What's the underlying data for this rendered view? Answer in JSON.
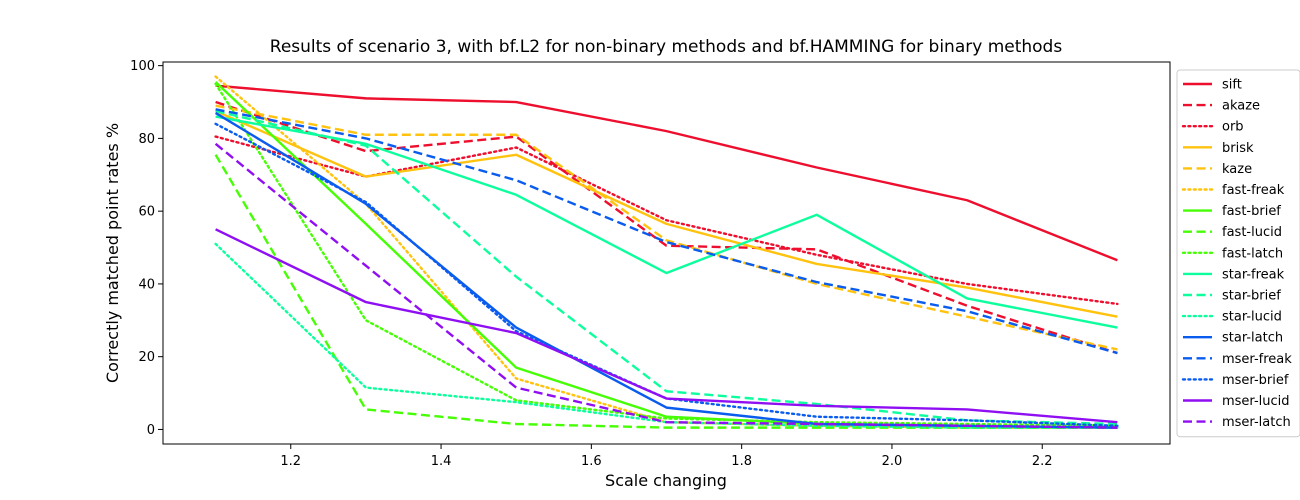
{
  "chart_data": {
    "type": "line",
    "title": "Results of scenario 3, with bf.L2 for non-binary methods and bf.HAMMING for binary methods",
    "xlabel": "Scale changing",
    "ylabel": "Correctly matched point rates %",
    "x": [
      1.1,
      1.3,
      1.5,
      1.7,
      1.9,
      2.1,
      2.3
    ],
    "xlim": [
      1.03,
      2.37
    ],
    "ylim": [
      -4,
      101
    ],
    "xticks": [
      "1.2",
      "1.4",
      "1.6",
      "1.8",
      "2.0",
      "2.2"
    ],
    "yticks": [
      "0",
      "20",
      "40",
      "60",
      "80",
      "100"
    ],
    "grid": false,
    "legend_position": "right-outside",
    "series": [
      {
        "name": "sift",
        "color": "#ee0e2e",
        "dash": "solid",
        "values": [
          94.5,
          91.0,
          90.0,
          82.0,
          72.0,
          63.0,
          46.5
        ]
      },
      {
        "name": "akaze",
        "color": "#ee0e2e",
        "dash": "dashed",
        "values": [
          90.0,
          76.5,
          80.5,
          50.5,
          49.5,
          34.0,
          21.0
        ]
      },
      {
        "name": "orb",
        "color": "#ee0e2e",
        "dash": "dotted",
        "values": [
          80.5,
          69.5,
          77.5,
          57.5,
          48.0,
          40.0,
          34.5
        ]
      },
      {
        "name": "brisk",
        "color": "#ffc30f",
        "dash": "solid",
        "values": [
          87.5,
          69.5,
          75.5,
          56.5,
          45.5,
          39.0,
          31.0
        ]
      },
      {
        "name": "kaze",
        "color": "#ffc30f",
        "dash": "dashed",
        "values": [
          89.0,
          81.0,
          81.0,
          52.0,
          40.0,
          31.0,
          22.0
        ]
      },
      {
        "name": "fast-freak",
        "color": "#ffc30f",
        "dash": "dotted",
        "values": [
          97.0,
          62.0,
          14.0,
          2.0,
          1.0,
          0.5,
          0.5
        ]
      },
      {
        "name": "fast-brief",
        "color": "#46ff05",
        "dash": "solid",
        "values": [
          95.5,
          56.5,
          17.0,
          3.5,
          1.5,
          1.0,
          0.5
        ]
      },
      {
        "name": "fast-lucid",
        "color": "#46ff05",
        "dash": "dashed",
        "values": [
          75.5,
          5.5,
          1.5,
          0.5,
          0.5,
          0.5,
          0.5
        ]
      },
      {
        "name": "fast-latch",
        "color": "#46ff05",
        "dash": "dotted",
        "values": [
          95.0,
          30.0,
          8.0,
          3.0,
          2.0,
          1.5,
          1.0
        ]
      },
      {
        "name": "star-freak",
        "color": "#0dff9d",
        "dash": "solid",
        "values": [
          86.0,
          78.5,
          64.5,
          43.0,
          59.0,
          36.0,
          28.0
        ]
      },
      {
        "name": "star-brief",
        "color": "#0dff9d",
        "dash": "dashed",
        "values": [
          87.5,
          78.0,
          42.0,
          10.5,
          7.0,
          2.5,
          1.5
        ]
      },
      {
        "name": "star-lucid",
        "color": "#0dff9d",
        "dash": "dotted",
        "values": [
          51.0,
          11.5,
          7.5,
          2.0,
          1.0,
          0.5,
          0.5
        ]
      },
      {
        "name": "star-latch",
        "color": "#0a5cef",
        "dash": "solid",
        "values": [
          87.0,
          62.0,
          28.0,
          6.0,
          1.5,
          1.0,
          0.5
        ]
      },
      {
        "name": "mser-freak",
        "color": "#0a5cef",
        "dash": "dashed",
        "values": [
          88.0,
          80.0,
          68.5,
          51.5,
          40.5,
          32.5,
          21.0
        ]
      },
      {
        "name": "mser-brief",
        "color": "#0a5cef",
        "dash": "dotted",
        "values": [
          84.0,
          62.5,
          27.0,
          8.5,
          3.5,
          2.5,
          1.0
        ]
      },
      {
        "name": "mser-lucid",
        "color": "#8f0ff2",
        "dash": "solid",
        "values": [
          55.0,
          35.0,
          26.5,
          8.5,
          6.5,
          5.5,
          2.0
        ]
      },
      {
        "name": "mser-latch",
        "color": "#8f0ff2",
        "dash": "dashed",
        "values": [
          78.5,
          45.0,
          11.5,
          2.0,
          1.5,
          1.0,
          0.5
        ]
      }
    ]
  }
}
